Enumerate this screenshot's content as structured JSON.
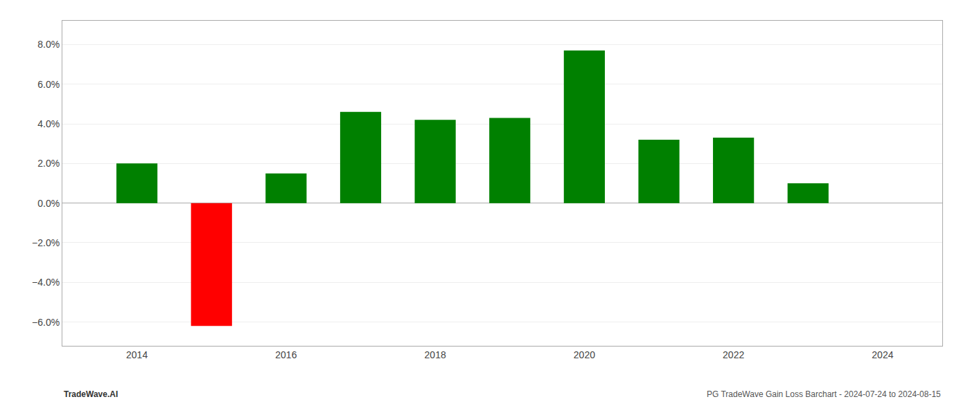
{
  "chart_data": {
    "type": "bar",
    "x": [
      2014,
      2015,
      2016,
      2017,
      2018,
      2019,
      2020,
      2021,
      2022,
      2023
    ],
    "values": [
      0.02,
      -0.062,
      0.015,
      0.046,
      0.042,
      0.043,
      0.077,
      0.032,
      0.033,
      0.01
    ],
    "colors": [
      "#008000",
      "#ff0000",
      "#008000",
      "#008000",
      "#008000",
      "#008000",
      "#008000",
      "#008000",
      "#008000",
      "#008000"
    ],
    "xlim": [
      2013.0,
      2024.8
    ],
    "xticks": [
      2014,
      2016,
      2018,
      2020,
      2022,
      2024
    ],
    "ylim": [
      -0.072,
      0.092
    ],
    "yticks": [
      {
        "value": -0.06,
        "label": "−6.0%"
      },
      {
        "value": -0.04,
        "label": "−4.0%"
      },
      {
        "value": -0.02,
        "label": "−2.0%"
      },
      {
        "value": 0.0,
        "label": "0.0%"
      },
      {
        "value": 0.02,
        "label": "2.0%"
      },
      {
        "value": 0.04,
        "label": "4.0%"
      },
      {
        "value": 0.06,
        "label": "6.0%"
      },
      {
        "value": 0.08,
        "label": "8.0%"
      }
    ],
    "grid": true,
    "annotations": [
      "TradeWave.AI",
      "PG TradeWave Gain Loss Barchart - 2024-07-24 to 2024-08-15"
    ]
  }
}
